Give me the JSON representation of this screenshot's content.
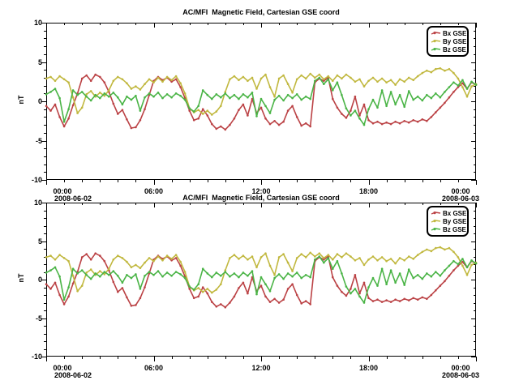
{
  "window": {
    "background": "#ffffff",
    "text_color": "#000000",
    "axis_color": "#000000"
  },
  "chart_data": [
    {
      "type": "line",
      "title": "AC/MFI  Magnetic Field, Cartesian GSE coord",
      "ylabel": "nT",
      "ylim": [
        -10,
        10
      ],
      "y_tick_labels": [
        "10",
        "5",
        "0",
        "-5",
        "-10"
      ],
      "y_minor_step": 1,
      "x_range_hours": [
        0,
        24
      ],
      "x_tick_labels": [
        "00:00",
        "06:00",
        "12:00",
        "18:00",
        "00:00"
      ],
      "x_dates": [
        "2008-06-02",
        "2008-06-03"
      ],
      "x_minor_step_hours": 1,
      "x_start_hour": 0,
      "x_step_hours": 0.25,
      "grid": false,
      "legend_position": "top-right",
      "legend": [
        "Bx GSE",
        "By GSE",
        "Bz GSE"
      ],
      "series": [
        {
          "name": "Bx GSE",
          "color": "#bb4245",
          "values": [
            -0.6,
            -1.2,
            -0.4,
            -2.0,
            -3.2,
            -2.2,
            -0.5,
            1.0,
            2.9,
            3.3,
            2.6,
            3.4,
            3.1,
            2.4,
            1.2,
            -0.3,
            -1.6,
            -1.1,
            -2.3,
            -3.4,
            -3.3,
            -2.4,
            -1.0,
            0.8,
            2.6,
            3.1,
            2.7,
            3.0,
            2.5,
            2.8,
            1.8,
            0.4,
            -1.2,
            -2.4,
            -2.2,
            -1.0,
            -1.8,
            -2.9,
            -3.5,
            -3.2,
            -3.6,
            -3.0,
            -2.2,
            -1.1,
            -0.4,
            -1.8,
            0.3,
            -1.5,
            -0.8,
            -2.2,
            -2.9,
            -2.5,
            -3.0,
            -2.6,
            -1.2,
            -0.6,
            -2.0,
            -3.1,
            -2.8,
            -3.2,
            2.4,
            2.9,
            2.6,
            3.0,
            0.3,
            -0.8,
            -1.6,
            -2.1,
            -1.2,
            0.6,
            -1.8,
            -0.4,
            -2.4,
            -2.8,
            -2.6,
            -2.9,
            -2.7,
            -2.9,
            -2.6,
            -2.8,
            -2.5,
            -2.7,
            -2.4,
            -2.6,
            -2.3,
            -2.5,
            -2.0,
            -1.4,
            -0.8,
            -0.2,
            0.5,
            1.2,
            1.8,
            2.3,
            1.6,
            2.4,
            2.1
          ]
        },
        {
          "name": "By GSE",
          "color": "#c1b83f",
          "values": [
            2.9,
            3.1,
            2.6,
            3.2,
            2.8,
            2.4,
            0.5,
            -1.5,
            -0.8,
            0.9,
            1.3,
            0.6,
            1.1,
            0.7,
            1.4,
            2.6,
            3.1,
            2.8,
            2.3,
            1.6,
            1.9,
            1.5,
            2.2,
            2.8,
            2.4,
            3.0,
            2.5,
            3.1,
            2.7,
            3.2,
            2.3,
            1.0,
            -0.9,
            -1.4,
            -1.1,
            -1.6,
            -1.2,
            -1.7,
            -1.3,
            -0.6,
            1.2,
            2.8,
            3.2,
            2.7,
            3.1,
            2.6,
            3.0,
            1.6,
            2.9,
            3.4,
            1.8,
            0.6,
            2.9,
            3.3,
            2.2,
            1.1,
            2.8,
            3.3,
            2.9,
            3.5,
            3.0,
            3.4,
            2.8,
            3.2,
            2.6,
            3.3,
            2.9,
            3.4,
            3.0,
            2.5,
            2.8,
            1.9,
            2.6,
            3.0,
            2.5,
            2.9,
            2.4,
            2.7,
            2.1,
            2.8,
            2.5,
            3.0,
            2.7,
            3.2,
            3.6,
            3.9,
            3.7,
            4.1,
            4.2,
            3.9,
            4.1,
            3.6,
            2.9,
            1.8,
            0.6,
            1.9,
            2.2
          ]
        },
        {
          "name": "Bz GSE",
          "color": "#4ab446",
          "values": [
            0.9,
            1.2,
            1.6,
            0.4,
            -2.6,
            -1.0,
            1.4,
            0.8,
            1.2,
            0.6,
            0.1,
            0.8,
            0.4,
            1.0,
            0.6,
            1.1,
            0.5,
            -0.4,
            0.6,
            0.2,
            0.7,
            -1.2,
            0.5,
            1.0,
            0.6,
            1.1,
            0.4,
            0.9,
            0.5,
            1.0,
            0.7,
            0.2,
            -0.9,
            -1.3,
            -0.6,
            1.4,
            0.8,
            0.3,
            0.9,
            0.5,
            1.0,
            0.4,
            0.8,
            0.3,
            0.9,
            0.5,
            1.1,
            -1.9,
            0.3,
            -0.6,
            -1.5,
            0.2,
            0.7,
            0.1,
            0.8,
            0.4,
            0.9,
            0.2,
            0.6,
            0.3,
            2.6,
            3.0,
            2.2,
            2.8,
            1.4,
            2.4,
            0.8,
            -0.9,
            -1.8,
            -1.2,
            -2.2,
            -3.0,
            -1.0,
            0.2,
            -0.8,
            1.4,
            -0.6,
            1.2,
            -0.4,
            0.8,
            -0.7,
            1.3,
            0.2,
            0.6,
            0.1,
            0.8,
            0.4,
            1.0,
            0.5,
            1.2,
            1.8,
            2.4,
            2.0,
            2.7,
            1.6,
            2.5,
            2.1
          ]
        }
      ]
    },
    {
      "type": "line",
      "title": "AC/MFI  Magnetic Field, Cartesian GSE coord",
      "ylabel": "nT",
      "ylim": [
        -10,
        10
      ],
      "y_tick_labels": [
        "10",
        "5",
        "0",
        "-5",
        "-10"
      ],
      "y_minor_step": 1,
      "x_range_hours": [
        0,
        24
      ],
      "x_tick_labels": [
        "00:00",
        "06:00",
        "12:00",
        "18:00",
        "00:00"
      ],
      "x_dates": [
        "2008-06-02",
        "2008-06-03"
      ],
      "x_minor_step_hours": 1,
      "x_start_hour": 0,
      "x_step_hours": 0.25,
      "grid": false,
      "legend_position": "top-right",
      "legend": [
        "Bx GSE",
        "By GSE",
        "Bz GSE"
      ],
      "series_same_as_chart": 0
    }
  ]
}
